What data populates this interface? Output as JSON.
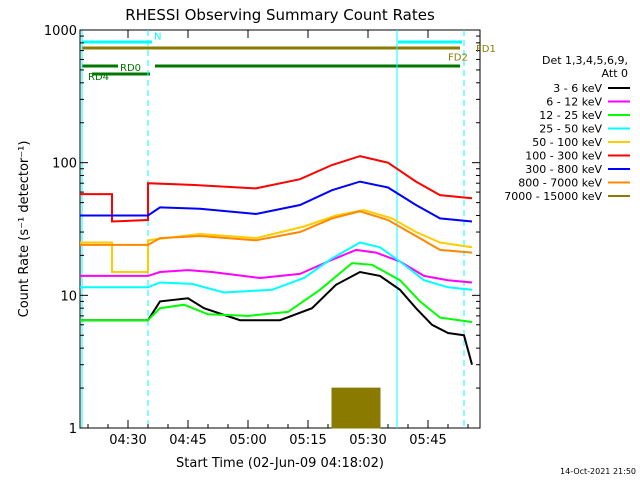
{
  "chart_data": {
    "type": "line",
    "title": "RHESSI Observing Summary Count Rates",
    "xlabel": "Start Time (02-Jun-09 04:18:02)",
    "ylabel": "Count Rate (s⁻¹ detector⁻¹)",
    "yscale": "log",
    "ylim": [
      1,
      1000
    ],
    "xlim_minutes_after_04:18:02": [
      0,
      100
    ],
    "x_ticks": [
      {
        "label": "04:30",
        "minutes": 12
      },
      {
        "label": "04:45",
        "minutes": 27
      },
      {
        "label": "05:00",
        "minutes": 42
      },
      {
        "label": "05:15",
        "minutes": 57
      },
      {
        "label": "05:30",
        "minutes": 72
      },
      {
        "label": "05:45",
        "minutes": 87
      }
    ],
    "y_ticks": [
      {
        "label": "1",
        "value": 1
      },
      {
        "label": "10",
        "value": 10
      },
      {
        "label": "100",
        "value": 100
      },
      {
        "label": "1000",
        "value": 1000
      }
    ],
    "legend": {
      "header_line1": "Det 1,3,4,5,6,9,",
      "header_line2": "Att 0",
      "placement": "right"
    },
    "series": [
      {
        "name": "3 - 6 keV",
        "color": "#000000",
        "points": [
          [
            0,
            6.5
          ],
          [
            17,
            6.5
          ],
          [
            20,
            9
          ],
          [
            27,
            9.5
          ],
          [
            31,
            8
          ],
          [
            40,
            6.5
          ],
          [
            50,
            6.5
          ],
          [
            58,
            8
          ],
          [
            64,
            12
          ],
          [
            70,
            15
          ],
          [
            75,
            14
          ],
          [
            80,
            11
          ],
          [
            84,
            8
          ],
          [
            88,
            6
          ],
          [
            92,
            5.2
          ],
          [
            96,
            5
          ],
          [
            98,
            3
          ]
        ]
      },
      {
        "name": "6 - 12 keV",
        "color": "#ff00ff",
        "points": [
          [
            0,
            14
          ],
          [
            17,
            14
          ],
          [
            20,
            15
          ],
          [
            27,
            15.5
          ],
          [
            33,
            15
          ],
          [
            45,
            13.5
          ],
          [
            55,
            14.5
          ],
          [
            62,
            18
          ],
          [
            69,
            22
          ],
          [
            74,
            21
          ],
          [
            80,
            18
          ],
          [
            86,
            14
          ],
          [
            92,
            13
          ],
          [
            98,
            12.5
          ]
        ]
      },
      {
        "name": "12 - 25 keV",
        "color": "#00ff00",
        "points": [
          [
            0,
            6.5
          ],
          [
            17,
            6.5
          ],
          [
            20,
            8
          ],
          [
            26,
            8.5
          ],
          [
            32,
            7.2
          ],
          [
            42,
            7
          ],
          [
            52,
            7.5
          ],
          [
            60,
            11
          ],
          [
            68,
            17.5
          ],
          [
            73,
            17
          ],
          [
            80,
            13
          ],
          [
            85,
            9
          ],
          [
            90,
            6.8
          ],
          [
            98,
            6.3
          ]
        ]
      },
      {
        "name": "25 - 50 keV",
        "color": "#00ffff",
        "points": [
          [
            0,
            11.5
          ],
          [
            17,
            11.5
          ],
          [
            20,
            12.5
          ],
          [
            28,
            12.2
          ],
          [
            36,
            10.5
          ],
          [
            48,
            11
          ],
          [
            56,
            13.5
          ],
          [
            63,
            19
          ],
          [
            70,
            25
          ],
          [
            75,
            23
          ],
          [
            80,
            18
          ],
          [
            86,
            13
          ],
          [
            92,
            11.5
          ],
          [
            98,
            11
          ]
        ]
      },
      {
        "name": "50 - 100 keV",
        "color": "#ffcc00",
        "points": [
          [
            0,
            25
          ],
          [
            8,
            25
          ],
          [
            8,
            15
          ],
          [
            17,
            15
          ],
          [
            17,
            26
          ],
          [
            30,
            29
          ],
          [
            44,
            27
          ],
          [
            56,
            33
          ],
          [
            64,
            40
          ],
          [
            71,
            44
          ],
          [
            78,
            38
          ],
          [
            84,
            30
          ],
          [
            90,
            25
          ],
          [
            98,
            23
          ]
        ]
      },
      {
        "name": "100 - 300 keV",
        "color": "#ff0000",
        "points": [
          [
            0,
            58
          ],
          [
            8,
            58
          ],
          [
            8,
            36
          ],
          [
            17,
            37
          ],
          [
            17,
            70
          ],
          [
            28,
            68
          ],
          [
            44,
            64
          ],
          [
            55,
            75
          ],
          [
            63,
            96
          ],
          [
            70,
            112
          ],
          [
            77,
            100
          ],
          [
            84,
            72
          ],
          [
            90,
            57
          ],
          [
            98,
            54
          ]
        ]
      },
      {
        "name": "300 - 800 keV",
        "color": "#0000ff",
        "points": [
          [
            0,
            40
          ],
          [
            17,
            40
          ],
          [
            20,
            46
          ],
          [
            30,
            45
          ],
          [
            44,
            41
          ],
          [
            55,
            48
          ],
          [
            63,
            62
          ],
          [
            70,
            72
          ],
          [
            77,
            65
          ],
          [
            84,
            48
          ],
          [
            90,
            38
          ],
          [
            98,
            36
          ]
        ]
      },
      {
        "name": "800 - 7000 keV",
        "color": "#ff8800",
        "points": [
          [
            0,
            24
          ],
          [
            17,
            24
          ],
          [
            20,
            27
          ],
          [
            30,
            28
          ],
          [
            44,
            26
          ],
          [
            55,
            30
          ],
          [
            63,
            38
          ],
          [
            70,
            43
          ],
          [
            77,
            37
          ],
          [
            84,
            28
          ],
          [
            90,
            22
          ],
          [
            98,
            21
          ]
        ]
      },
      {
        "name": "7000 - 15000 keV",
        "color": "#8b7a00",
        "points": [
          [
            63,
            1
          ],
          [
            63,
            2
          ],
          [
            75,
            2
          ],
          [
            75,
            1
          ]
        ]
      }
    ],
    "annotations": [
      {
        "text": "N",
        "x": 18.5,
        "y": 850
      },
      {
        "text": "FD1",
        "x": 99,
        "y": 680
      },
      {
        "text": "FD2",
        "x": 92,
        "y": 590
      },
      {
        "text": "RD0",
        "x": 10,
        "y": 490
      },
      {
        "text": "RD4",
        "x": 2,
        "y": 420
      }
    ],
    "timestamp": "14-Oct-2021 21:50",
    "grid": false
  }
}
